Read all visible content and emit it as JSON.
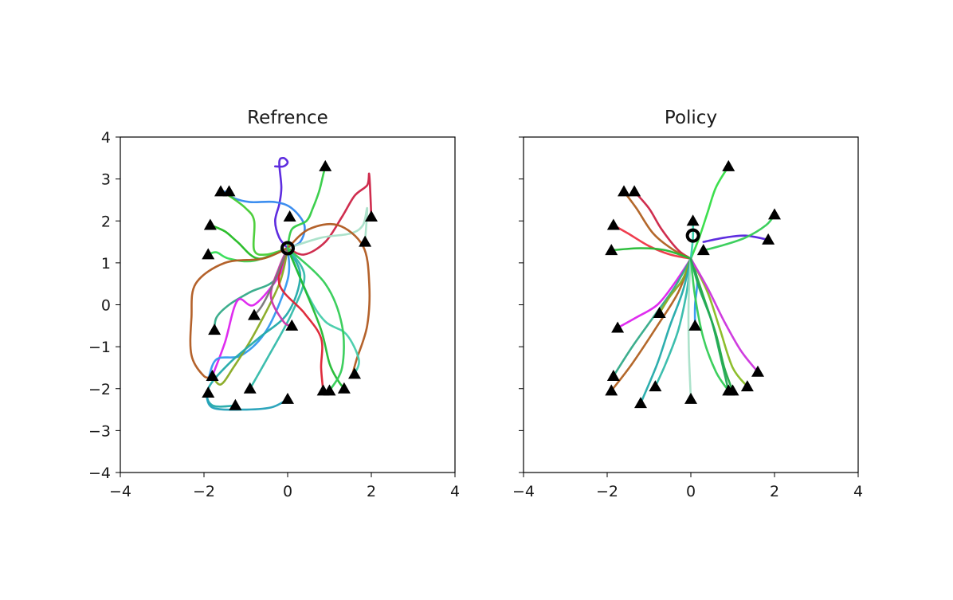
{
  "chart_data": [
    {
      "type": "line",
      "title": "Refrence",
      "xlabel": "",
      "ylabel": "",
      "xlim": [
        -4,
        4
      ],
      "ylim": [
        -4,
        4
      ],
      "xticks": [
        -4,
        -2,
        0,
        2,
        4
      ],
      "yticks": [
        -4,
        -3,
        -2,
        -1,
        0,
        1,
        2,
        3,
        4
      ],
      "xtick_labels": [
        "−4",
        "−2",
        "0",
        "2",
        "4"
      ],
      "ytick_labels": [
        "−4",
        "−3",
        "−2",
        "−1",
        "0",
        "1",
        "2",
        "3",
        "4"
      ],
      "grid": false,
      "start": {
        "x": 0.0,
        "y": 1.35
      },
      "goals": [
        {
          "x": -1.6,
          "y": 2.7
        },
        {
          "x": -1.4,
          "y": 2.7
        },
        {
          "x": 0.9,
          "y": 3.3
        },
        {
          "x": -1.85,
          "y": 1.9
        },
        {
          "x": -1.9,
          "y": 1.2
        },
        {
          "x": 0.05,
          "y": 2.1
        },
        {
          "x": 2.0,
          "y": 2.1
        },
        {
          "x": 1.85,
          "y": 1.5
        },
        {
          "x": -1.75,
          "y": -0.6
        },
        {
          "x": -0.8,
          "y": -0.25
        },
        {
          "x": 0.1,
          "y": -0.5
        },
        {
          "x": -1.8,
          "y": -1.7
        },
        {
          "x": -1.9,
          "y": -2.1
        },
        {
          "x": -0.9,
          "y": -2.0
        },
        {
          "x": -1.25,
          "y": -2.4
        },
        {
          "x": 0.0,
          "y": -2.25
        },
        {
          "x": 0.85,
          "y": -2.05
        },
        {
          "x": 1.0,
          "y": -2.05
        },
        {
          "x": 1.35,
          "y": -2.0
        },
        {
          "x": 1.6,
          "y": -1.65
        }
      ],
      "series": [
        {
          "color": "#5522dd",
          "x": [
            0.0,
            -0.2,
            -0.3,
            -0.2,
            -0.15,
            -0.2,
            -0.1,
            0.0,
            -0.1,
            -0.3
          ],
          "y": [
            1.35,
            1.6,
            2.0,
            2.4,
            2.8,
            3.4,
            3.5,
            3.4,
            3.3,
            3.3
          ]
        },
        {
          "color": "#3388ee",
          "x": [
            0.0,
            0.3,
            0.4,
            0.1,
            -0.3,
            -0.9,
            -1.3,
            -1.5
          ],
          "y": [
            1.35,
            1.5,
            1.9,
            2.3,
            2.45,
            2.45,
            2.55,
            2.7
          ]
        },
        {
          "color": "#33cc44",
          "x": [
            0.0,
            0.1,
            0.45,
            0.6,
            0.75,
            0.85,
            0.9
          ],
          "y": [
            1.35,
            1.8,
            2.0,
            2.3,
            2.7,
            3.1,
            3.3
          ]
        },
        {
          "color": "#cc2244",
          "x": [
            0.0,
            0.4,
            0.9,
            1.3,
            1.6,
            1.9,
            1.95,
            2.0
          ],
          "y": [
            1.35,
            1.2,
            1.5,
            2.1,
            2.6,
            2.85,
            3.1,
            2.1
          ]
        },
        {
          "color": "#a8e0c8",
          "x": [
            0.0,
            0.8,
            1.5,
            1.8,
            1.9,
            1.85
          ],
          "y": [
            1.35,
            1.6,
            1.7,
            1.9,
            2.3,
            1.5
          ]
        },
        {
          "color": "#44cc33",
          "x": [
            0.0,
            -0.5,
            -0.8,
            -0.8,
            -1.0,
            -1.4,
            -1.6
          ],
          "y": [
            1.35,
            1.2,
            1.3,
            2.0,
            2.3,
            2.6,
            2.7
          ]
        },
        {
          "color": "#22bb22",
          "x": [
            0.0,
            -0.7,
            -1.2,
            -1.5,
            -1.85
          ],
          "y": [
            1.35,
            1.1,
            1.5,
            1.75,
            1.9
          ]
        },
        {
          "color": "#33dd55",
          "x": [
            0.0,
            -0.8,
            -1.4,
            -1.7,
            -1.9
          ],
          "y": [
            1.35,
            1.05,
            1.1,
            1.25,
            1.2
          ]
        },
        {
          "color": "#b05a20",
          "x": [
            0.0,
            -0.6,
            -1.5,
            -2.2,
            -2.3,
            -2.3,
            -2.0,
            -1.8
          ],
          "y": [
            1.35,
            1.1,
            1.0,
            0.5,
            -0.3,
            -1.2,
            -1.7,
            -1.7
          ]
        },
        {
          "color": "#b05a20",
          "x": [
            0.0,
            0.5,
            1.2,
            1.8,
            1.95,
            1.9,
            1.65,
            1.55
          ],
          "y": [
            1.35,
            1.8,
            1.9,
            1.4,
            0.5,
            -0.5,
            -1.3,
            -1.65
          ]
        },
        {
          "color": "#33aa88",
          "x": [
            0.0,
            -0.3,
            -0.9,
            -1.4,
            -1.7,
            -1.75
          ],
          "y": [
            1.35,
            0.6,
            0.3,
            0.0,
            -0.3,
            -0.6
          ]
        },
        {
          "color": "#dd22ee",
          "x": [
            0.0,
            -0.2,
            -0.8,
            -1.2,
            -1.5,
            -1.8
          ],
          "y": [
            1.35,
            0.7,
            0.0,
            0.1,
            -0.9,
            -1.7
          ]
        },
        {
          "color": "#3399ee",
          "x": [
            0.0,
            0.0,
            -0.5,
            -1.1,
            -1.7,
            -1.9
          ],
          "y": [
            1.35,
            0.6,
            -0.6,
            -1.2,
            -1.3,
            -1.8
          ]
        },
        {
          "color": "#88aa22",
          "x": [
            0.0,
            -0.2,
            -0.8,
            -1.3,
            -1.6,
            -1.8
          ],
          "y": [
            1.35,
            0.5,
            -0.7,
            -1.5,
            -1.9,
            -1.7
          ]
        },
        {
          "color": "#22aaaa",
          "x": [
            0.0,
            0.3,
            0.0,
            -0.7,
            -1.4,
            -1.9,
            -1.8,
            -1.2
          ],
          "y": [
            1.35,
            0.7,
            -0.2,
            -0.8,
            -1.4,
            -2.0,
            -2.4,
            -2.4
          ]
        },
        {
          "color": "#22a0b8",
          "x": [
            -1.95,
            -1.8,
            -1.1,
            -0.4,
            0.0
          ],
          "y": [
            -2.1,
            -2.45,
            -2.5,
            -2.45,
            -2.25
          ]
        },
        {
          "color": "#33bbaa",
          "x": [
            0.0,
            0.4,
            0.1,
            -0.5,
            -0.9
          ],
          "y": [
            1.35,
            0.7,
            -0.2,
            -1.3,
            -2.0
          ]
        },
        {
          "color": "#dd2233",
          "x": [
            0.0,
            -0.2,
            0.4,
            0.8,
            0.8,
            0.85
          ],
          "y": [
            1.35,
            0.5,
            -0.2,
            -0.8,
            -1.5,
            -2.05
          ]
        },
        {
          "color": "#44ccaa",
          "x": [
            0.0,
            0.5,
            0.9,
            1.4,
            1.7,
            1.6
          ],
          "y": [
            1.35,
            0.2,
            -0.4,
            -0.7,
            -1.3,
            -1.65
          ]
        },
        {
          "color": "#22bb33",
          "x": [
            0.0,
            0.4,
            0.8,
            1.0,
            1.2,
            1.35
          ],
          "y": [
            1.35,
            0.4,
            -0.6,
            -1.4,
            -1.8,
            -2.0
          ]
        },
        {
          "color": "#cc33aa",
          "x": [
            0.0,
            -0.2,
            -0.4,
            -0.1,
            0.1
          ],
          "y": [
            1.35,
            0.9,
            0.2,
            -0.4,
            -0.5
          ]
        },
        {
          "color": "#777777",
          "x": [
            0.0,
            -0.3,
            -0.6,
            -0.8
          ],
          "y": [
            1.35,
            0.6,
            0.0,
            -0.25
          ]
        },
        {
          "color": "#33cc55",
          "x": [
            0.0,
            0.9,
            1.3,
            1.3,
            1.0
          ],
          "y": [
            1.35,
            0.5,
            -0.5,
            -1.5,
            -2.05
          ]
        }
      ]
    },
    {
      "type": "line",
      "title": "Policy",
      "xlabel": "",
      "ylabel": "",
      "xlim": [
        -4,
        4
      ],
      "ylim": [
        -4,
        4
      ],
      "xticks": [
        -4,
        -2,
        0,
        2,
        4
      ],
      "yticks": [
        -4,
        -3,
        -2,
        -1,
        0,
        1,
        2,
        3,
        4
      ],
      "xtick_labels": [
        "−4",
        "−2",
        "0",
        "2",
        "4"
      ],
      "ytick_labels": [],
      "grid": false,
      "start": {
        "x": 0.05,
        "y": 1.65
      },
      "goals": [
        {
          "x": -1.6,
          "y": 2.7
        },
        {
          "x": -1.35,
          "y": 2.7
        },
        {
          "x": 0.9,
          "y": 3.3
        },
        {
          "x": -1.85,
          "y": 1.9
        },
        {
          "x": -1.9,
          "y": 1.3
        },
        {
          "x": 0.05,
          "y": 2.0
        },
        {
          "x": 2.0,
          "y": 2.15
        },
        {
          "x": 1.85,
          "y": 1.55
        },
        {
          "x": -1.75,
          "y": -0.55
        },
        {
          "x": -0.75,
          "y": -0.2
        },
        {
          "x": 0.1,
          "y": -0.5
        },
        {
          "x": -1.85,
          "y": -1.7
        },
        {
          "x": -1.9,
          "y": -2.05
        },
        {
          "x": -0.85,
          "y": -1.95
        },
        {
          "x": -1.2,
          "y": -2.35
        },
        {
          "x": 0.0,
          "y": -2.25
        },
        {
          "x": 0.9,
          "y": -2.05
        },
        {
          "x": 1.0,
          "y": -2.05
        },
        {
          "x": 1.35,
          "y": -1.95
        },
        {
          "x": 1.6,
          "y": -1.6
        },
        {
          "x": 0.3,
          "y": 1.3
        }
      ],
      "series": [
        {
          "color": "#cc2244",
          "x": [
            0.0,
            -0.3,
            -0.7,
            -1.0,
            -1.35
          ],
          "y": [
            1.1,
            1.3,
            1.8,
            2.3,
            2.7
          ]
        },
        {
          "color": "#b06020",
          "x": [
            0.0,
            -0.4,
            -0.9,
            -1.3,
            -1.6
          ],
          "y": [
            1.1,
            1.3,
            1.7,
            2.3,
            2.7
          ]
        },
        {
          "color": "#ee3344",
          "x": [
            0.0,
            -0.5,
            -1.0,
            -1.5,
            -1.85
          ],
          "y": [
            1.1,
            1.2,
            1.4,
            1.7,
            1.9
          ]
        },
        {
          "color": "#22bb33",
          "x": [
            0.0,
            -0.6,
            -1.2,
            -1.9
          ],
          "y": [
            1.1,
            1.3,
            1.35,
            1.3
          ]
        },
        {
          "color": "#33dd44",
          "x": [
            0.0,
            0.2,
            0.4,
            0.6,
            0.9
          ],
          "y": [
            1.1,
            1.6,
            2.2,
            2.8,
            3.3
          ]
        },
        {
          "color": "#5522dd",
          "x": [
            0.3,
            0.8,
            1.3,
            1.85
          ],
          "y": [
            1.5,
            1.6,
            1.65,
            1.55
          ]
        },
        {
          "color": "#33cc55",
          "x": [
            0.3,
            0.7,
            1.3,
            1.8,
            2.0
          ],
          "y": [
            1.3,
            1.4,
            1.6,
            1.9,
            2.15
          ]
        },
        {
          "color": "#33ccaa",
          "x": [
            0.0,
            0.05,
            0.05
          ],
          "y": [
            1.1,
            1.6,
            2.0
          ]
        },
        {
          "color": "#dd22ee",
          "x": [
            0.0,
            -0.4,
            -0.8,
            -1.3,
            -1.75
          ],
          "y": [
            1.1,
            0.5,
            0.0,
            -0.3,
            -0.55
          ]
        },
        {
          "color": "#33aa88",
          "x": [
            0.0,
            -0.4,
            -0.9,
            -1.4,
            -1.85
          ],
          "y": [
            1.1,
            0.4,
            -0.3,
            -1.0,
            -1.7
          ]
        },
        {
          "color": "#b06020",
          "x": [
            0.0,
            -0.3,
            -0.8,
            -1.4,
            -1.9
          ],
          "y": [
            1.1,
            0.3,
            -0.5,
            -1.4,
            -2.05
          ]
        },
        {
          "color": "#88aa22",
          "x": [
            0.0,
            -0.2,
            -0.5,
            -0.75
          ],
          "y": [
            1.1,
            0.6,
            0.2,
            -0.2
          ]
        },
        {
          "color": "#22aaaa",
          "x": [
            0.0,
            -0.2,
            -0.5,
            -0.8,
            -1.2
          ],
          "y": [
            1.1,
            0.3,
            -0.5,
            -1.4,
            -2.35
          ]
        },
        {
          "color": "#33bbaa",
          "x": [
            0.0,
            -0.1,
            -0.3,
            -0.6,
            -0.85
          ],
          "y": [
            1.1,
            0.3,
            -0.6,
            -1.4,
            -1.95
          ]
        },
        {
          "color": "#a8e0c8",
          "x": [
            0.0,
            -0.05,
            -0.05,
            0.0
          ],
          "y": [
            1.1,
            0.2,
            -1.0,
            -2.25
          ]
        },
        {
          "color": "#3399ee",
          "x": [
            0.0,
            0.15,
            0.1,
            0.1
          ],
          "y": [
            1.1,
            0.6,
            0.0,
            -0.5
          ]
        },
        {
          "color": "#33cc55",
          "x": [
            0.0,
            0.1,
            0.3,
            0.6,
            0.9
          ],
          "y": [
            1.1,
            0.2,
            -0.8,
            -1.6,
            -2.05
          ]
        },
        {
          "color": "#22aa44",
          "x": [
            0.0,
            0.3,
            0.6,
            0.8,
            1.0
          ],
          "y": [
            1.1,
            0.2,
            -0.7,
            -1.5,
            -2.05
          ]
        },
        {
          "color": "#88bb22",
          "x": [
            0.0,
            0.4,
            0.7,
            1.0,
            1.35
          ],
          "y": [
            1.1,
            0.3,
            -0.6,
            -1.5,
            -1.95
          ]
        },
        {
          "color": "#cc33dd",
          "x": [
            0.0,
            0.4,
            0.8,
            1.2,
            1.6
          ],
          "y": [
            1.1,
            0.4,
            -0.4,
            -1.1,
            -1.6
          ]
        },
        {
          "color": "#22aa55",
          "x": [
            0.0,
            0.2,
            0.5,
            0.7,
            0.9
          ],
          "y": [
            1.1,
            0.4,
            -0.4,
            -1.2,
            -2.05
          ]
        }
      ]
    }
  ]
}
